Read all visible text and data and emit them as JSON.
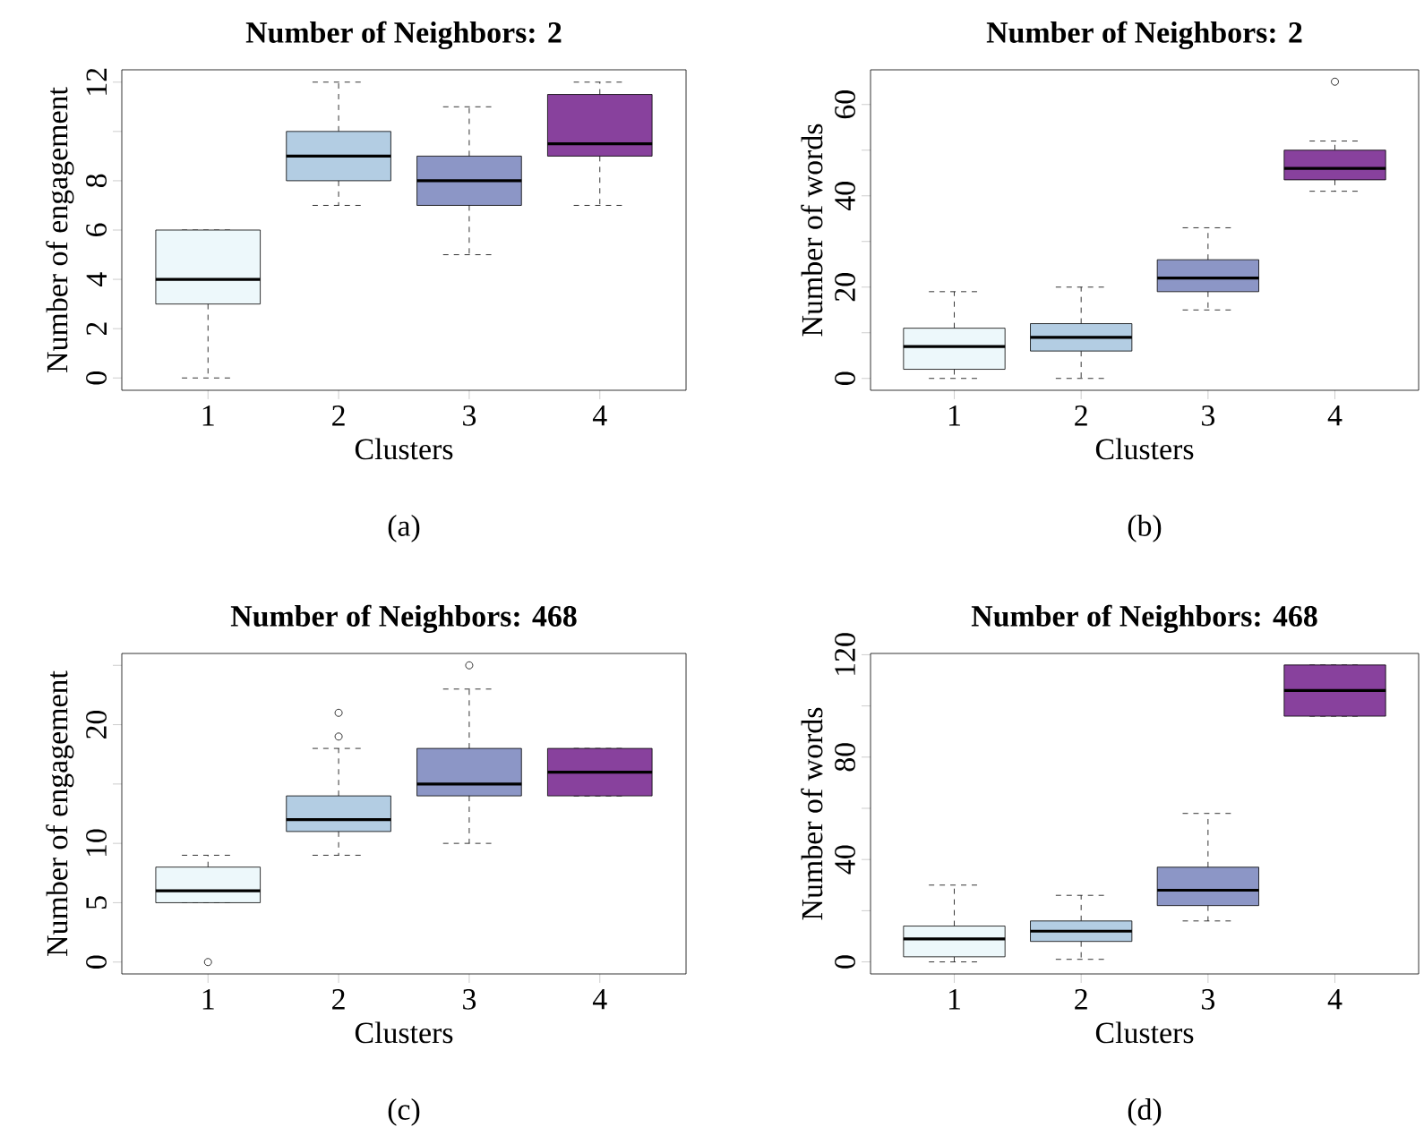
{
  "chart_data": [
    {
      "type": "box",
      "title": "Number of Neighbors: 2",
      "xlabel": "Clusters",
      "ylabel": "Number of engagement",
      "annotations": [
        "(a)"
      ],
      "categories": [
        "1",
        "2",
        "3",
        "4"
      ],
      "boxes": [
        {
          "low": 0,
          "q1": 3,
          "median": 4,
          "q3": 6,
          "high": 6
        },
        {
          "low": 7,
          "q1": 8,
          "median": 9,
          "q3": 10,
          "high": 12
        },
        {
          "low": 5,
          "q1": 7,
          "median": 8,
          "q3": 9,
          "high": 11
        },
        {
          "low": 7,
          "q1": 9,
          "median": 9.5,
          "q3": 11.5,
          "high": 12
        }
      ],
      "colors": [
        "#edf8fb",
        "#b3cde3",
        "#8c96c6",
        "#88419d"
      ],
      "ylim": [
        -0.5,
        12.5
      ],
      "yticks": [
        0,
        2,
        4,
        6,
        8,
        {
          "value": 10,
          "label": null
        },
        12
      ]
    },
    {
      "type": "box",
      "title": "Number of Neighbors: 2",
      "xlabel": "Clusters",
      "ylabel": "Number of words",
      "annotations": [
        "(b)"
      ],
      "categories": [
        "1",
        "2",
        "3",
        "4"
      ],
      "boxes": [
        {
          "low": 0,
          "q1": 2,
          "median": 7,
          "q3": 11,
          "high": 19
        },
        {
          "low": 0,
          "q1": 6,
          "median": 9,
          "q3": 12,
          "high": 20
        },
        {
          "low": 15,
          "q1": 19,
          "median": 22,
          "q3": 26,
          "high": 33
        },
        {
          "low": 41,
          "q1": 43.5,
          "median": 46,
          "q3": 50,
          "high": 52,
          "outliers": [
            65
          ]
        }
      ],
      "colors": [
        "#edf8fb",
        "#b3cde3",
        "#8c96c6",
        "#88419d"
      ],
      "ylim": [
        -2.6,
        67.6
      ],
      "yticks": [
        0,
        {
          "value": 10,
          "label": null
        },
        20,
        {
          "value": 30,
          "label": null
        },
        40,
        {
          "value": 50,
          "label": null
        },
        60
      ]
    },
    {
      "type": "box",
      "title": "Number of Neighbors: 468",
      "xlabel": "Clusters",
      "ylabel": "Number of engagement",
      "annotations": [
        "(c)"
      ],
      "categories": [
        "1",
        "2",
        "3",
        "4"
      ],
      "boxes": [
        {
          "low": 5,
          "q1": 5,
          "median": 6,
          "q3": 8,
          "high": 9,
          "outliers": [
            0
          ]
        },
        {
          "low": 9,
          "q1": 11,
          "median": 12,
          "q3": 14,
          "high": 18,
          "outliers": [
            19,
            21
          ]
        },
        {
          "low": 10,
          "q1": 14,
          "median": 15,
          "q3": 18,
          "high": 23,
          "outliers": [
            25
          ]
        },
        {
          "low": 14,
          "q1": 14,
          "median": 16,
          "q3": 18,
          "high": 18
        }
      ],
      "colors": [
        "#edf8fb",
        "#b3cde3",
        "#8c96c6",
        "#88419d"
      ],
      "ylim": [
        -1,
        26
      ],
      "yticks": [
        0,
        5,
        10,
        {
          "value": 15,
          "label": null
        },
        20,
        {
          "value": 25,
          "label": null
        }
      ]
    },
    {
      "type": "box",
      "title": "Number of Neighbors: 468",
      "xlabel": "Clusters",
      "ylabel": "Number of words",
      "annotations": [
        "(d)"
      ],
      "categories": [
        "1",
        "2",
        "3",
        "4"
      ],
      "boxes": [
        {
          "low": 0,
          "q1": 2,
          "median": 9,
          "q3": 14,
          "high": 30
        },
        {
          "low": 1,
          "q1": 8,
          "median": 12,
          "q3": 16,
          "high": 26
        },
        {
          "low": 16,
          "q1": 22,
          "median": 28,
          "q3": 37,
          "high": 58
        },
        {
          "low": 96,
          "q1": 96,
          "median": 106,
          "q3": 116,
          "high": 116
        }
      ],
      "colors": [
        "#edf8fb",
        "#b3cde3",
        "#8c96c6",
        "#88419d"
      ],
      "ylim": [
        -4.7,
        120.5
      ],
      "yticks": [
        0,
        {
          "value": 20,
          "label": null
        },
        40,
        {
          "value": 60,
          "label": null
        },
        80,
        {
          "value": 100,
          "label": null
        },
        120
      ]
    }
  ]
}
